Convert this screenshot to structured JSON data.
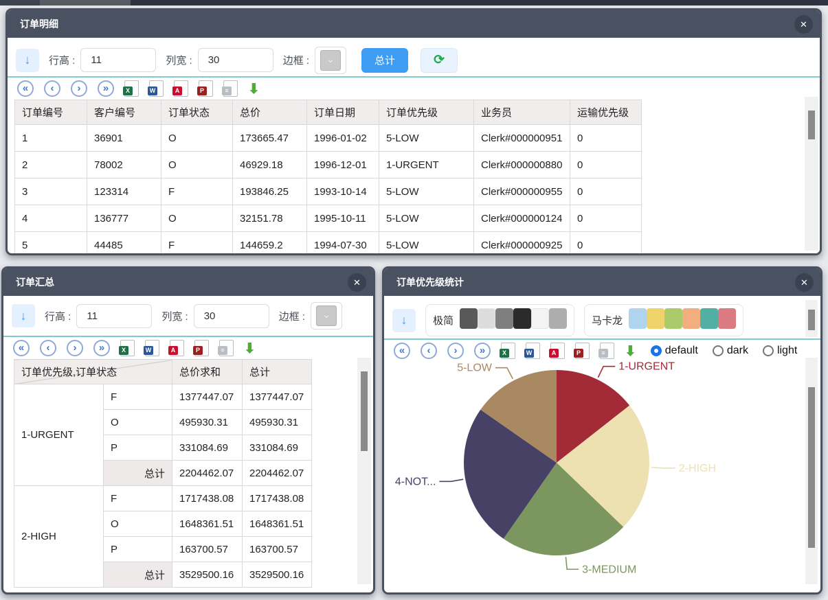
{
  "icons": {
    "close": "✕",
    "down_arrow": "↓",
    "refresh": "⟳",
    "chevron_down": "⌄",
    "download": "⬇",
    "pager": [
      {
        "name": "first-page",
        "glyph": "«"
      },
      {
        "name": "prev-page",
        "glyph": "‹"
      },
      {
        "name": "next-page",
        "glyph": "›"
      },
      {
        "name": "last-page",
        "glyph": "»"
      }
    ],
    "files": [
      {
        "name": "export-excel",
        "letter": "X",
        "color": "#1E7145"
      },
      {
        "name": "export-word",
        "letter": "W",
        "color": "#2B579A"
      },
      {
        "name": "export-pdf",
        "letter": "A",
        "color": "#C8102E"
      },
      {
        "name": "print",
        "letter": "P",
        "color": "#9B2020"
      },
      {
        "name": "clipboard",
        "letter": "≡",
        "color": "#B9BDC4"
      }
    ]
  },
  "colors": {
    "accent_blue": "#3F9CF3",
    "divider_teal": "#82CBCD",
    "titlebar": "#4A5262",
    "refresh_green": "#21A94C",
    "download_green": "#4CAF2E"
  },
  "panels": {
    "detail": {
      "title": "订单明细",
      "toolbar": {
        "row_height_label": "行高 :",
        "row_height_value": "11",
        "col_width_label": "列宽 :",
        "col_width_value": "30",
        "border_label": "边框 :",
        "total_label": "总计"
      },
      "table": {
        "headers": [
          "订单编号",
          "客户编号",
          "订单状态",
          "总价",
          "订单日期",
          "订单优先级",
          "业务员",
          "运输优先级"
        ],
        "rows": [
          [
            "1",
            "36901",
            "O",
            "173665.47",
            "1996-01-02",
            "5-LOW",
            "Clerk#000000951",
            "0"
          ],
          [
            "2",
            "78002",
            "O",
            "46929.18",
            "1996-12-01",
            "1-URGENT",
            "Clerk#000000880",
            "0"
          ],
          [
            "3",
            "123314",
            "F",
            "193846.25",
            "1993-10-14",
            "5-LOW",
            "Clerk#000000955",
            "0"
          ],
          [
            "4",
            "136777",
            "O",
            "32151.78",
            "1995-10-11",
            "5-LOW",
            "Clerk#000000124",
            "0"
          ],
          [
            "5",
            "44485",
            "F",
            "144659.2",
            "1994-07-30",
            "5-LOW",
            "Clerk#000000925",
            "0"
          ]
        ]
      }
    },
    "summary": {
      "title": "订单汇总",
      "toolbar": {
        "row_height_label": "行高 :",
        "row_height_value": "11",
        "col_width_label": "列宽 :",
        "col_width_value": "30",
        "border_label": "边框 :"
      },
      "pivot": {
        "corner_header": "订单优先级,订单状态",
        "value_headers": [
          "总价求和",
          "总计"
        ],
        "total_label": "总计",
        "groups": [
          {
            "name": "1-URGENT",
            "rows": [
              [
                "F",
                "1377447.07",
                "1377447.07"
              ],
              [
                "O",
                "495930.31",
                "495930.31"
              ],
              [
                "P",
                "331084.69",
                "331084.69"
              ]
            ],
            "total": [
              "2204462.07",
              "2204462.07"
            ]
          },
          {
            "name": "2-HIGH",
            "rows": [
              [
                "F",
                "1717438.08",
                "1717438.08"
              ],
              [
                "O",
                "1648361.51",
                "1648361.51"
              ],
              [
                "P",
                "163700.57",
                "163700.57"
              ]
            ],
            "total": [
              "3529500.16",
              "3529500.16"
            ]
          }
        ]
      }
    },
    "stats": {
      "title": "订单优先级统计",
      "themes": [
        {
          "name": "极简",
          "swatches": [
            "#595959",
            "#DCDCDC",
            "#7F7F7F",
            "#2B2B2B",
            "#F3F3F3",
            "#ADADAD"
          ]
        },
        {
          "name": "马卡龙",
          "swatches": [
            "#AFD5EE",
            "#EFD36A",
            "#ABCB6B",
            "#F2AE7E",
            "#51AFA4",
            "#D97B80"
          ]
        }
      ],
      "modes": [
        {
          "label": "default",
          "selected": true
        },
        {
          "label": "dark",
          "selected": false
        },
        {
          "label": "light",
          "selected": false
        }
      ]
    }
  },
  "chart_data": {
    "type": "pie",
    "title": "订单优先级统计",
    "labels": [
      "1-URGENT",
      "2-HIGH",
      "3-MEDIUM",
      "4-NOT...",
      "5-LOW"
    ],
    "values": [
      14.4,
      22.8,
      22.5,
      25.0,
      15.3
    ],
    "values_unit": "percent (estimated from slice angles)",
    "colors": [
      "#A32B38",
      "#EDE1B2",
      "#7C965F",
      "#484166",
      "#A98962"
    ],
    "start_angle_deg": 0,
    "clockwise": true,
    "legend": false,
    "label_style": "outside labels with leader lines, text colored as slice"
  }
}
